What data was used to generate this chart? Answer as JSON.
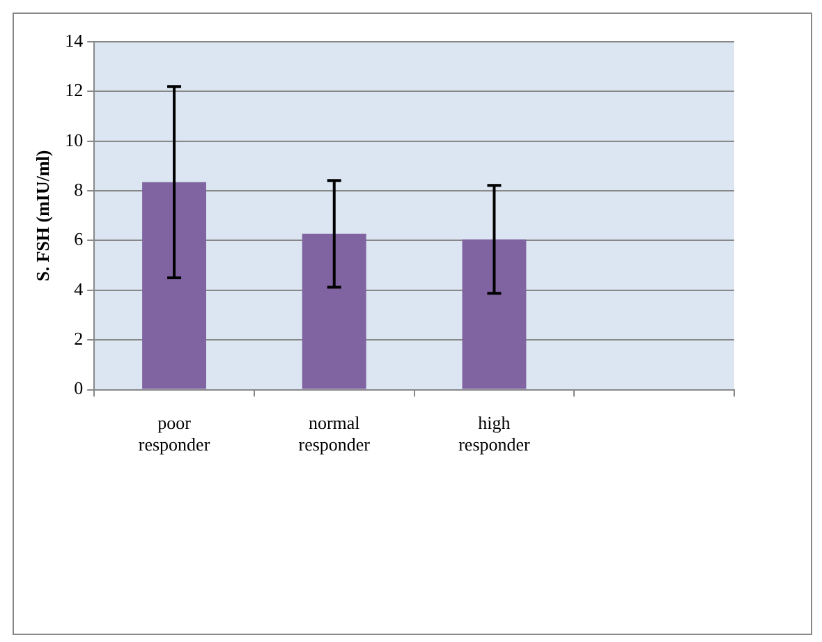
{
  "chart_data": {
    "type": "bar",
    "ylabel": "S. FSH (mIU/ml)",
    "categories": [
      "poor responder",
      "normal responder",
      "high responder",
      null
    ],
    "values": [
      8.35,
      6.27,
      6.05,
      null
    ],
    "errors": [
      3.85,
      2.15,
      2.17,
      null
    ],
    "color": "#8064a2",
    "ylim": [
      0,
      14
    ],
    "yticks": [
      0,
      2,
      4,
      6,
      8,
      10,
      12,
      14
    ],
    "grid": "y",
    "legend": false
  }
}
